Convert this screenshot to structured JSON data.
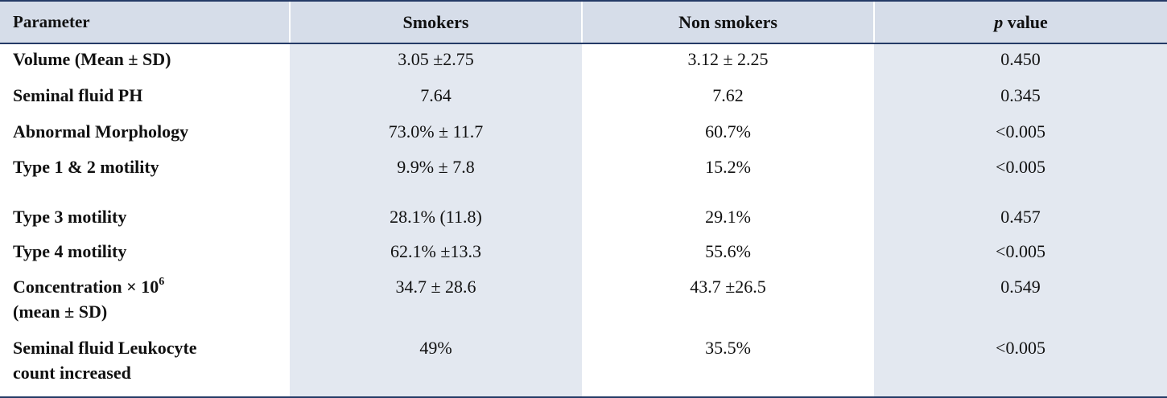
{
  "table": {
    "headers": {
      "parameter": "Parameter",
      "smokers": "Smokers",
      "non_smokers": "Non smokers",
      "p_italic": "p",
      "p_rest": " value"
    },
    "rows": [
      {
        "parameter": "Volume (Mean ± SD)",
        "smokers": "3.05 ±2.75",
        "non_smokers": "3.12 ± 2.25",
        "p_value": "0.450"
      },
      {
        "parameter": "Seminal fluid PH",
        "smokers": "7.64",
        "non_smokers": "7.62",
        "p_value": "0.345"
      },
      {
        "parameter": "Abnormal Morphology",
        "smokers": "73.0%  ± 11.7",
        "non_smokers": "60.7%",
        "p_value": "<0.005"
      },
      {
        "parameter": "Type 1 & 2 motility",
        "smokers": "9.9%  ± 7.8",
        "non_smokers": "15.2%",
        "p_value": "<0.005"
      },
      {
        "parameter": "Type 3 motility",
        "smokers": "28.1% (11.8)",
        "non_smokers": "29.1%",
        "p_value": "0.457"
      },
      {
        "parameter": "Type 4 motility",
        "smokers": "62.1% ±13.3",
        "non_smokers": "55.6%",
        "p_value": "<0.005"
      },
      {
        "parameter_line1": "Concentration × 10",
        "parameter_sup": "6",
        "parameter_line2": "(mean ± SD)",
        "smokers": "34.7 ± 28.6",
        "non_smokers": "43.7 ±26.5",
        "p_value": "0.549"
      },
      {
        "parameter_line1": "Seminal fluid Leukocyte",
        "parameter_line2": "count increased",
        "smokers": "49%",
        "non_smokers": "35.5%",
        "p_value": "<0.005"
      }
    ]
  }
}
